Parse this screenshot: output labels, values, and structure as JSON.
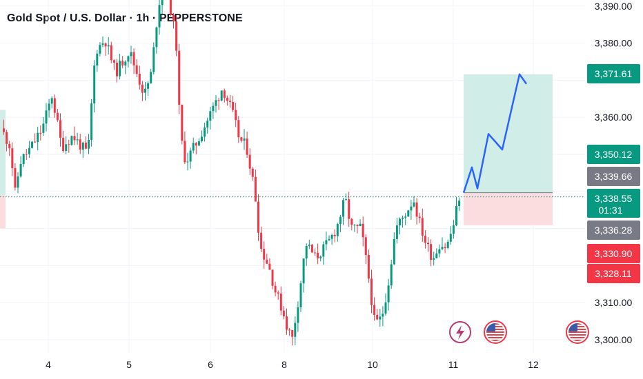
{
  "header": {
    "title": "Gold Spot / U.S. Dollar · 1h · PEPPERSTONE"
  },
  "chart_data": {
    "type": "candlestick",
    "symbol": "Gold Spot / U.S. Dollar",
    "interval": "1h",
    "source": "PEPPERSTONE",
    "x_tick_labels": [
      "4",
      "5",
      "6",
      "8",
      "10",
      "11",
      "12"
    ],
    "y_tick_labels": [
      "3,390.00",
      "3,380.00",
      "3,360.00",
      "3,310.00",
      "3,300.00"
    ],
    "y_ticks": [
      3390,
      3380,
      3360,
      3310,
      3300
    ],
    "ylim": [
      3298,
      3391
    ],
    "grid": true,
    "current_price": 3338.55,
    "price_tags": [
      {
        "label": "3,371.61",
        "value": 3371.61,
        "color": "#089981"
      },
      {
        "label": "3,350.12",
        "value": 3350.12,
        "color": "#089981"
      },
      {
        "label": "3,339.66",
        "value": 3339.66,
        "color": "#787b86"
      },
      {
        "label": "3,338.55",
        "sub": "01:31",
        "value": 3338.55,
        "color": "#089981"
      },
      {
        "label": "3,336.28",
        "value": 3336.28,
        "color": "#787b86"
      },
      {
        "label": "3,330.90",
        "value": 3330.9,
        "color": "#f23645"
      },
      {
        "label": "3,328.11",
        "value": 3328.11,
        "color": "#f23645"
      }
    ],
    "position_tool": {
      "entry": 3339.66,
      "target": 3371.61,
      "stop": 3330.9,
      "profit_color": "#d1ede7",
      "loss_color": "#fbdcdf"
    },
    "projection_path": [
      3339.66,
      3346.5,
      3340.8,
      3355.5,
      3351.3,
      3371.61,
      3369.0
    ],
    "up_color": "#089981",
    "down_color": "#f23645",
    "projection_color": "#2962ff",
    "event_icons": [
      "lightning-icon",
      "us-flag-icon",
      "us-flag-icon"
    ]
  }
}
